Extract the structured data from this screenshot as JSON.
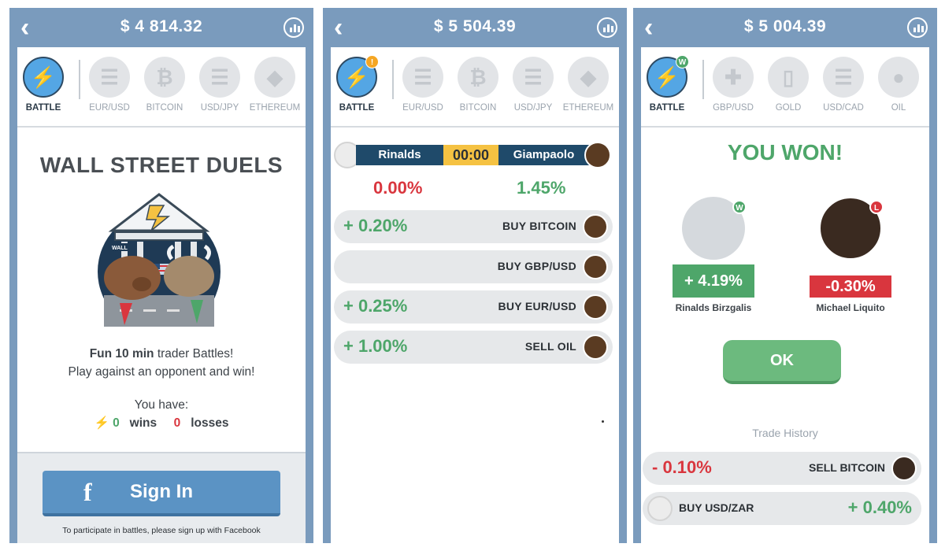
{
  "screens": [
    {
      "balance": "$ 4 814.32",
      "tabs": [
        {
          "label": "BATTLE",
          "icon": "lightning-icon",
          "active": true
        },
        {
          "label": "EUR/USD",
          "icon": "flag-icon"
        },
        {
          "label": "BITCOIN",
          "icon": "bitcoin-icon"
        },
        {
          "label": "USD/JPY",
          "icon": "flag-icon"
        },
        {
          "label": "ETHEREUM",
          "icon": "ethereum-icon"
        }
      ],
      "title": "WALL STREET DUELS",
      "fun_bold": "Fun 10 min",
      "fun_rest": " trader Battles!",
      "fun_line2": "Play against an opponent and win!",
      "you_have": "You have:",
      "wins_count": "0",
      "wins_label": "wins",
      "losses_count": "0",
      "losses_label": "losses",
      "sign_in": "Sign In",
      "sign_note": "To participate in battles, please sign up with Facebook"
    },
    {
      "balance": "$ 5 504.39",
      "tabs": [
        {
          "label": "BATTLE",
          "icon": "lightning-icon",
          "active": true,
          "badge": "!"
        },
        {
          "label": "EUR/USD",
          "icon": "flag-icon"
        },
        {
          "label": "BITCOIN",
          "icon": "bitcoin-icon"
        },
        {
          "label": "USD/JPY",
          "icon": "flag-icon"
        },
        {
          "label": "ETHEREUM",
          "icon": "ethereum-icon"
        }
      ],
      "player_left": "Rinalds",
      "timer": "00:00",
      "player_right": "Giampaolo",
      "pct_left": "0.00%",
      "pct_right": "1.45%",
      "trades": [
        {
          "pct": "+ 0.20%",
          "action": "BUY BITCOIN"
        },
        {
          "pct": "",
          "action": "BUY GBP/USD"
        },
        {
          "pct": "+ 0.25%",
          "action": "BUY EUR/USD"
        },
        {
          "pct": "+ 1.00%",
          "action": "SELL OIL"
        }
      ]
    },
    {
      "balance": "$ 5 004.39",
      "tabs": [
        {
          "label": "BATTLE",
          "icon": "lightning-icon",
          "active": true,
          "badge": "W"
        },
        {
          "label": "GBP/USD",
          "icon": "flag-icon"
        },
        {
          "label": "GOLD",
          "icon": "gold-bar-icon"
        },
        {
          "label": "USD/CAD",
          "icon": "flag-icon"
        },
        {
          "label": "OIL",
          "icon": "oil-drop-icon"
        }
      ],
      "result_title": "YOU WON!",
      "winner_badge": "W",
      "loser_badge": "L",
      "winner_pct": "+ 4.19%",
      "loser_pct": "-0.30%",
      "winner_name": "Rinalds Birzgalis",
      "loser_name": "Michael Liquito",
      "ok": "OK",
      "history_title": "Trade History",
      "history": [
        {
          "pct": "- 0.10%",
          "action": "SELL BITCOIN"
        },
        {
          "pct": "+ 0.40%",
          "action": "BUY USD/ZAR"
        }
      ]
    }
  ],
  "colors": {
    "frame": "#7a9bbd",
    "green": "#4ea66a",
    "red": "#d9363e",
    "navy": "#1f4a6a",
    "yellow": "#f5c242"
  }
}
